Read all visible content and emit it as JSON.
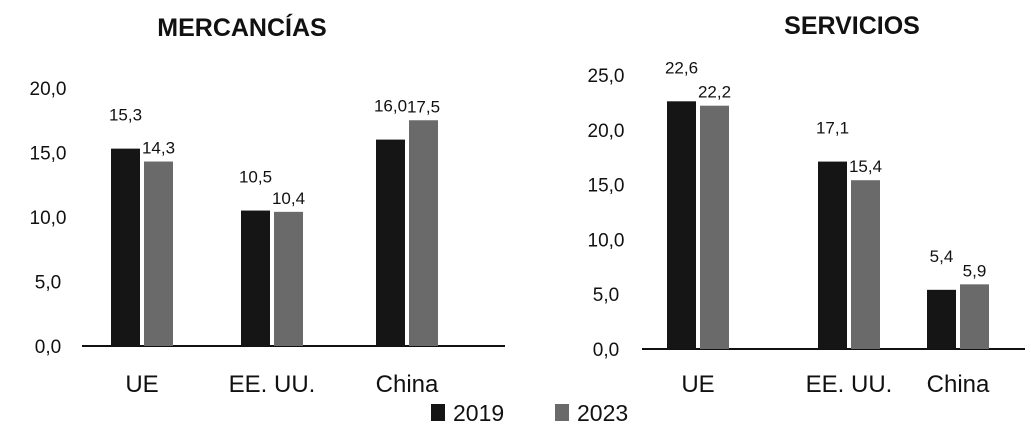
{
  "legend": [
    {
      "label": "2019",
      "color": "#151515"
    },
    {
      "label": "2023",
      "color": "#6a6a6a"
    }
  ],
  "chart_data": [
    {
      "type": "bar",
      "title": "MERCANCÍAS",
      "categories": [
        "UE",
        "EE. UU.",
        "China"
      ],
      "series": [
        {
          "name": "2019",
          "values": [
            15.3,
            10.5,
            16.0
          ],
          "labels": [
            "15,3",
            "10,5",
            "16,0"
          ]
        },
        {
          "name": "2023",
          "values": [
            14.3,
            10.4,
            17.5
          ],
          "labels": [
            "14,3",
            "10,4",
            "17,5"
          ]
        }
      ],
      "ylim": [
        0,
        20
      ],
      "yticks": [
        0,
        5,
        10,
        15,
        20
      ],
      "ytick_labels": [
        "0,0",
        "5,0",
        "10,0",
        "15,0",
        "20,0"
      ],
      "grid": false,
      "legend_position": "bottom"
    },
    {
      "type": "bar",
      "title": "SERVICIOS",
      "categories": [
        "UE",
        "EE. UU.",
        "China"
      ],
      "series": [
        {
          "name": "2019",
          "values": [
            22.6,
            17.1,
            5.4
          ],
          "labels": [
            "22,6",
            "17,1",
            "5,4"
          ]
        },
        {
          "name": "2023",
          "values": [
            22.2,
            15.4,
            5.9
          ],
          "labels": [
            "22,2",
            "15,4",
            "5,9"
          ]
        }
      ],
      "ylim": [
        0,
        25
      ],
      "yticks": [
        0,
        5,
        10,
        15,
        20,
        25
      ],
      "ytick_labels": [
        "0,0",
        "5,0",
        "10,0",
        "15,0",
        "20,0",
        "25,0"
      ],
      "grid": false,
      "legend_position": "bottom"
    }
  ]
}
